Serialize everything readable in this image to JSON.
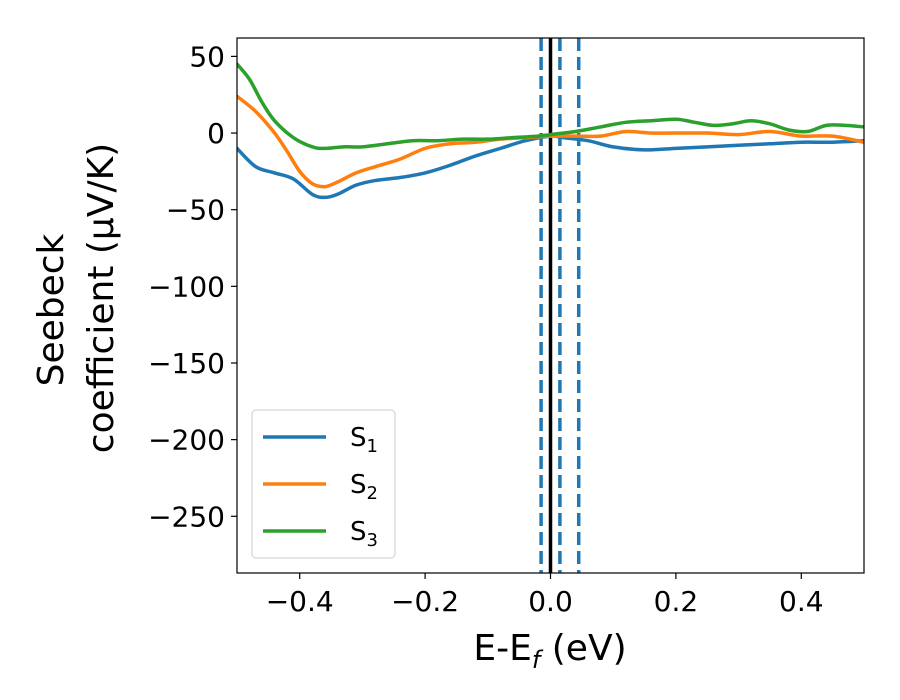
{
  "chart_data": {
    "type": "line",
    "xlabel": "E-E",
    "xlabel_sub": "f",
    "xlabel_unit": " (eV)",
    "ylabel_line1": "Seebeck",
    "ylabel_line2": "coefficient  (μV/K)",
    "xlim": [
      -0.5,
      0.5
    ],
    "ylim": [
      -287,
      62
    ],
    "xticks": [
      -0.4,
      -0.2,
      0.0,
      0.2,
      0.4
    ],
    "xtick_labels": [
      "−0.4",
      "−0.2",
      "0.0",
      "0.2",
      "0.4"
    ],
    "yticks": [
      50,
      0,
      -50,
      -100,
      -150,
      -200,
      -250
    ],
    "ytick_labels": [
      "50",
      "0",
      "−50",
      "−100",
      "−150",
      "−200",
      "−250"
    ],
    "grid": false,
    "legend_position": "lower-left",
    "vlines": [
      {
        "x": 0.0,
        "style": "solid",
        "color": "#000000"
      },
      {
        "x": -0.015,
        "style": "dashed",
        "color": "#1f77b4"
      },
      {
        "x": 0.015,
        "style": "dashed",
        "color": "#1f77b4"
      },
      {
        "x": 0.045,
        "style": "dashed",
        "color": "#1f77b4"
      }
    ],
    "series": [
      {
        "name": "S",
        "name_sub": "1",
        "color": "#1f77b4",
        "x": [
          -0.5,
          -0.47,
          -0.44,
          -0.41,
          -0.38,
          -0.36,
          -0.34,
          -0.31,
          -0.28,
          -0.24,
          -0.2,
          -0.16,
          -0.12,
          -0.08,
          -0.04,
          0.0,
          0.02,
          0.06,
          0.1,
          0.15,
          0.2,
          0.25,
          0.3,
          0.35,
          0.4,
          0.45,
          0.5
        ],
        "y": [
          -10,
          -22,
          -26,
          -30,
          -40,
          -42,
          -40,
          -34,
          -31,
          -29,
          -26,
          -21,
          -15,
          -10,
          -5,
          -2,
          -3,
          -5,
          -9,
          -11,
          -10,
          -9,
          -8,
          -7,
          -6,
          -6,
          -5
        ]
      },
      {
        "name": "S",
        "name_sub": "2",
        "color": "#ff7f0e",
        "x": [
          -0.5,
          -0.47,
          -0.44,
          -0.42,
          -0.4,
          -0.38,
          -0.36,
          -0.34,
          -0.31,
          -0.28,
          -0.24,
          -0.2,
          -0.16,
          -0.12,
          -0.08,
          -0.04,
          0.0,
          0.04,
          0.08,
          0.12,
          0.16,
          0.2,
          0.25,
          0.3,
          0.35,
          0.4,
          0.45,
          0.5
        ],
        "y": [
          24,
          14,
          0,
          -12,
          -25,
          -33,
          -35,
          -32,
          -26,
          -22,
          -17,
          -10,
          -7,
          -6,
          -4,
          -3,
          -2,
          -2,
          -2,
          1,
          0,
          0,
          0,
          -1,
          1,
          -2,
          -2,
          -6
        ]
      },
      {
        "name": "S",
        "name_sub": "3",
        "color": "#2ca02c",
        "x": [
          -0.5,
          -0.48,
          -0.46,
          -0.44,
          -0.41,
          -0.38,
          -0.36,
          -0.33,
          -0.3,
          -0.26,
          -0.22,
          -0.18,
          -0.14,
          -0.1,
          -0.06,
          -0.02,
          0.0,
          0.04,
          0.08,
          0.12,
          0.16,
          0.2,
          0.23,
          0.26,
          0.29,
          0.32,
          0.35,
          0.38,
          0.41,
          0.44,
          0.47,
          0.5
        ],
        "y": [
          45,
          35,
          20,
          8,
          -3,
          -9,
          -10,
          -9,
          -9,
          -7,
          -5,
          -5,
          -4,
          -4,
          -3,
          -2,
          -1,
          1,
          4,
          7,
          8,
          9,
          7,
          5,
          6,
          8,
          6,
          2,
          1,
          5,
          5,
          4
        ]
      }
    ]
  }
}
